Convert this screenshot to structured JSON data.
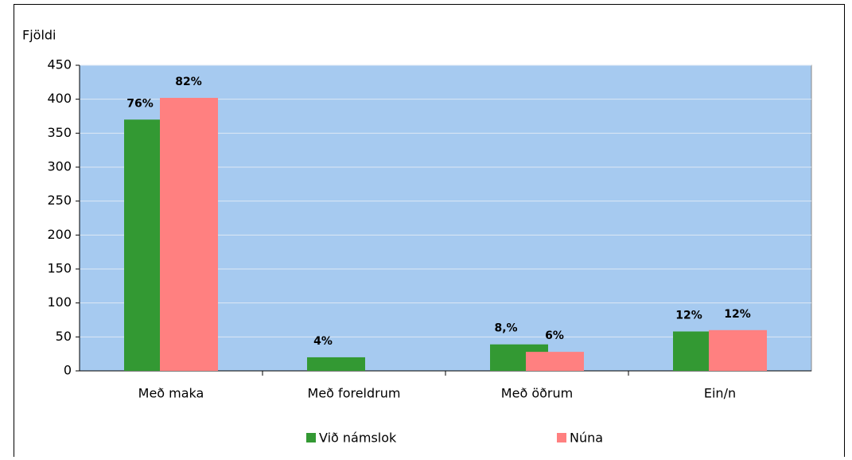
{
  "chart_data": {
    "type": "bar",
    "y_axis_label": "Fjöldi",
    "categories": [
      "Með maka",
      "Með foreldrum",
      "Með öðrum",
      "Ein/n"
    ],
    "series": [
      {
        "name": "Við námslok",
        "color": "#339933",
        "values": [
          370,
          20,
          39,
          58
        ],
        "percent_labels": [
          "76%",
          "4%",
          "8,%",
          "12%"
        ]
      },
      {
        "name": "Núna",
        "color": "#ff8080",
        "values": [
          402,
          null,
          28,
          60
        ],
        "percent_labels": [
          "82%",
          null,
          "6%",
          "12%"
        ]
      }
    ],
    "ylim": [
      0,
      450
    ],
    "yticks": [
      0,
      50,
      100,
      150,
      200,
      250,
      300,
      350,
      400,
      450
    ],
    "grid": true,
    "plot_background": "#a6caf0"
  }
}
